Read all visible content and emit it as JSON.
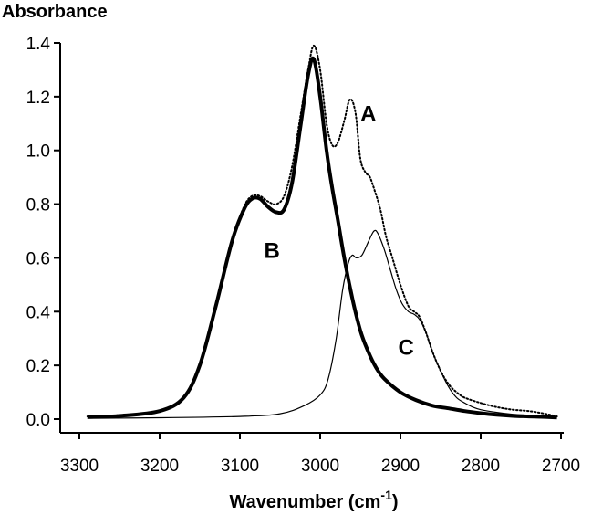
{
  "chart_data": {
    "type": "line",
    "ylabel": "Absorbance",
    "xlabel": "Wavenumber (cm",
    "xlabel_sup": "-1",
    "xlabel_close": ")",
    "xlim": [
      3300,
      2700
    ],
    "ylim": [
      0,
      1.4
    ],
    "x_ticks": [
      3300,
      3200,
      3100,
      3000,
      2900,
      2800,
      2700
    ],
    "x_tick_labels": [
      "3300",
      "3200",
      "3100",
      "3000",
      "2900",
      "2800",
      "2700"
    ],
    "y_ticks": [
      0,
      0.2,
      0.4,
      0.6,
      0.8,
      1.0,
      1.2,
      1.4
    ],
    "y_tick_labels": [
      "0.0",
      "0.2",
      "0.4",
      "0.6",
      "0.8",
      "1.0",
      "1.2",
      "1.4"
    ],
    "grid": false,
    "legend": "none",
    "series": [
      {
        "name": "A",
        "style": "dotted",
        "x": [
          3290,
          3250,
          3200,
          3170,
          3150,
          3130,
          3110,
          3095,
          3085,
          3075,
          3065,
          3055,
          3045,
          3035,
          3025,
          3015,
          3008,
          3000,
          2992,
          2985,
          2978,
          2970,
          2963,
          2956,
          2950,
          2944,
          2938,
          2932,
          2925,
          2918,
          2910,
          2900,
          2890,
          2883,
          2876,
          2868,
          2860,
          2850,
          2840,
          2830,
          2820,
          2800,
          2780,
          2760,
          2740,
          2720,
          2705
        ],
        "y": [
          0.01,
          0.015,
          0.03,
          0.08,
          0.2,
          0.42,
          0.66,
          0.79,
          0.83,
          0.83,
          0.81,
          0.8,
          0.83,
          0.94,
          1.12,
          1.3,
          1.39,
          1.3,
          1.1,
          1.02,
          1.03,
          1.11,
          1.19,
          1.14,
          0.97,
          0.92,
          0.9,
          0.85,
          0.78,
          0.68,
          0.6,
          0.5,
          0.42,
          0.4,
          0.38,
          0.32,
          0.25,
          0.18,
          0.13,
          0.1,
          0.08,
          0.06,
          0.045,
          0.035,
          0.03,
          0.02,
          0.01
        ]
      },
      {
        "name": "B",
        "style": "thick",
        "x": [
          3290,
          3250,
          3200,
          3170,
          3150,
          3130,
          3110,
          3095,
          3085,
          3075,
          3065,
          3055,
          3045,
          3035,
          3025,
          3015,
          3008,
          3000,
          2992,
          2985,
          2978,
          2970,
          2960,
          2950,
          2940,
          2930,
          2920,
          2900,
          2880,
          2860,
          2840,
          2820,
          2800,
          2780,
          2760,
          2740,
          2720,
          2705
        ],
        "y": [
          0.008,
          0.012,
          0.03,
          0.08,
          0.2,
          0.42,
          0.66,
          0.78,
          0.82,
          0.82,
          0.79,
          0.77,
          0.78,
          0.88,
          1.08,
          1.28,
          1.34,
          1.2,
          1.0,
          0.86,
          0.74,
          0.6,
          0.45,
          0.33,
          0.25,
          0.19,
          0.15,
          0.1,
          0.07,
          0.05,
          0.04,
          0.03,
          0.022,
          0.016,
          0.012,
          0.01,
          0.008,
          0.006
        ]
      },
      {
        "name": "C",
        "style": "thin",
        "x": [
          3290,
          3200,
          3100,
          3050,
          3020,
          3000,
          2990,
          2980,
          2972,
          2965,
          2960,
          2955,
          2948,
          2940,
          2933,
          2928,
          2920,
          2912,
          2905,
          2898,
          2890,
          2883,
          2876,
          2868,
          2860,
          2850,
          2840,
          2830,
          2820,
          2810,
          2800,
          2780,
          2760,
          2740,
          2720,
          2705
        ],
        "y": [
          0.003,
          0.005,
          0.01,
          0.02,
          0.05,
          0.09,
          0.15,
          0.3,
          0.48,
          0.58,
          0.61,
          0.6,
          0.61,
          0.66,
          0.7,
          0.69,
          0.63,
          0.55,
          0.48,
          0.43,
          0.4,
          0.39,
          0.37,
          0.32,
          0.25,
          0.18,
          0.12,
          0.08,
          0.06,
          0.045,
          0.035,
          0.025,
          0.018,
          0.014,
          0.01,
          0.008
        ]
      }
    ],
    "annotations": [
      {
        "text": "A",
        "x": 2940,
        "y": 1.11
      },
      {
        "text": "B",
        "x": 3060,
        "y": 0.6
      },
      {
        "text": "C",
        "x": 2893,
        "y": 0.24
      }
    ]
  }
}
